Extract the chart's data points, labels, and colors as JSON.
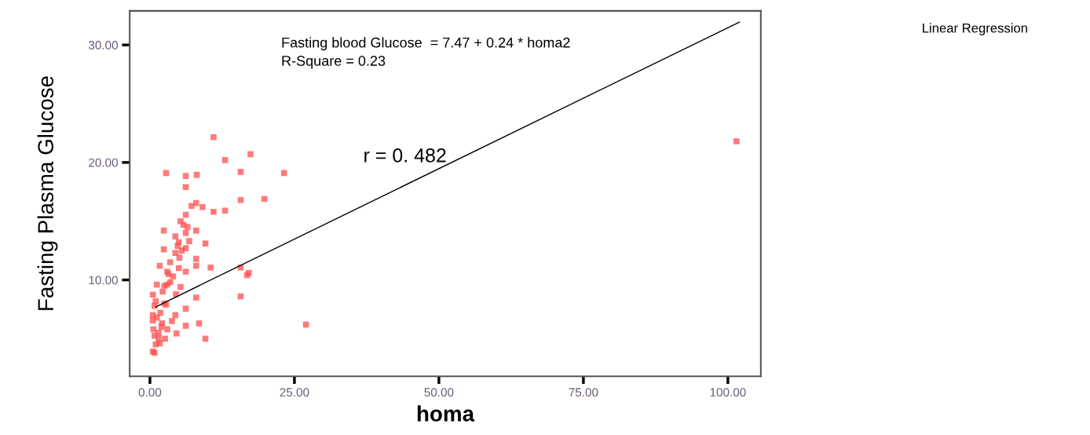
{
  "chart_data": {
    "type": "scatter",
    "xlabel": "homa",
    "ylabel": "Fasting Plasma Glucose",
    "annotations": [
      "Fasting blood Glucose  = 7.47 + 0.24 * homa2",
      "R-Square = 0.23",
      "r = 0. 482",
      "Linear Regression"
    ],
    "xlim": [
      -3.5,
      105.7
    ],
    "ylim": [
      1.8,
      32.9
    ],
    "xticks": [
      {
        "value": 0,
        "label": "0.00"
      },
      {
        "value": 25,
        "label": "25.00"
      },
      {
        "value": 50,
        "label": "50.00"
      },
      {
        "value": 75,
        "label": "75.00"
      },
      {
        "value": 100,
        "label": "100.00"
      }
    ],
    "yticks": [
      {
        "value": 10,
        "label": "10.00"
      },
      {
        "value": 20,
        "label": "20.00"
      },
      {
        "value": 30,
        "label": "30.00"
      }
    ],
    "grid": false,
    "legend": false,
    "marker": "square",
    "series": [
      {
        "color": "#ff4d4d",
        "x": [
          11.0,
          17.4,
          13.0,
          2.8,
          6.2,
          8.1,
          15.7,
          23.2,
          6.2,
          15.7,
          19.8,
          11.0,
          13.0,
          8.0,
          9.1,
          7.2,
          6.2,
          5.3,
          2.4,
          4.4,
          6.2,
          8.0,
          9.6,
          2.4,
          4.4,
          6.2,
          5.1,
          8.0,
          8.0,
          10.5,
          1.7,
          3.0,
          6.2,
          15.7,
          17.1,
          16.8,
          1.2,
          3.0,
          5.3,
          0.5,
          8.0,
          15.7,
          2.8,
          0.8,
          6.2,
          4.4,
          0.5,
          2.1,
          6.2,
          8.5,
          4.6,
          0.8,
          2.6,
          9.6,
          0.5,
          1.7,
          0.8,
          1.0,
          1.5,
          2.0,
          1.2,
          1.8,
          2.5,
          1.0,
          2.2,
          3.5,
          4.0,
          3.2,
          2.5,
          1.5,
          3.0,
          3.8,
          0.6,
          0.5,
          4.5,
          5.0,
          5.5,
          4.8,
          3.5,
          6.8,
          6.5,
          5.8,
          5.0,
          27.0,
          101.5
        ],
        "values": [
          22.15,
          20.7,
          20.2,
          19.1,
          18.85,
          18.95,
          19.2,
          19.1,
          17.9,
          16.8,
          16.9,
          15.8,
          15.9,
          16.55,
          16.2,
          16.3,
          15.55,
          15.0,
          14.2,
          13.7,
          14.0,
          14.2,
          13.1,
          12.6,
          12.3,
          12.7,
          11.9,
          11.8,
          11.2,
          11.05,
          11.2,
          10.7,
          10.7,
          11.05,
          10.6,
          10.4,
          9.6,
          9.6,
          9.4,
          8.75,
          8.5,
          8.6,
          7.9,
          7.8,
          7.55,
          7.0,
          6.55,
          6.3,
          6.1,
          6.3,
          5.45,
          5.25,
          5.0,
          5.0,
          3.9,
          4.6,
          3.8,
          4.5,
          5.5,
          6.0,
          6.8,
          7.2,
          8.0,
          8.2,
          9.0,
          9.8,
          10.3,
          10.5,
          9.5,
          5.0,
          5.8,
          6.5,
          5.8,
          7.0,
          8.8,
          11.0,
          12.5,
          12.9,
          11.5,
          13.3,
          14.5,
          14.7,
          13.2,
          6.2,
          21.8
        ]
      },
      {
        "type": "line",
        "color": "#000000",
        "marker": "none",
        "line_style": "solid",
        "x": [
          1.0,
          102.0
        ],
        "values": [
          7.71,
          31.95
        ]
      }
    ]
  }
}
